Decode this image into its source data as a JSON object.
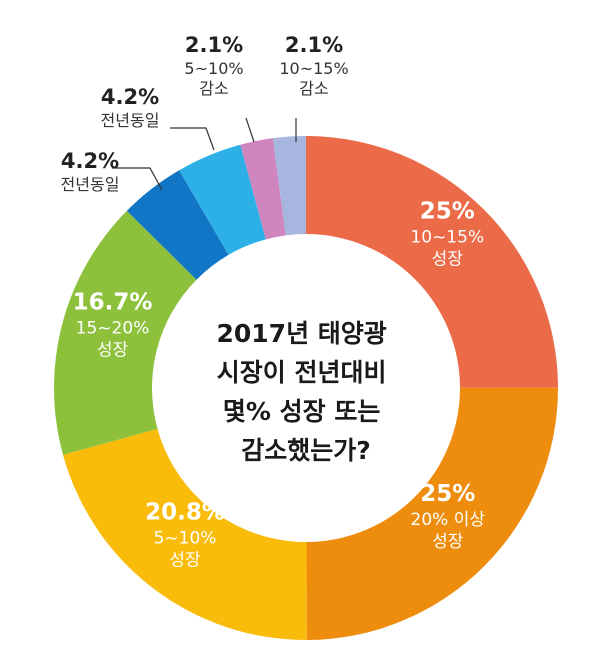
{
  "chart_data": {
    "type": "pie",
    "donut": true,
    "center_text": [
      "2017년 태양광",
      "시장이 전년대비",
      "몇% 성장 또는",
      "감소했는가?"
    ],
    "slices": [
      {
        "value": 25,
        "percent_label": "25%",
        "label_lines": [
          "10~15%",
          "성장"
        ],
        "color": "#EB6B48"
      },
      {
        "value": 25,
        "percent_label": "25%",
        "label_lines": [
          "20% 이상",
          "성장"
        ],
        "color": "#EE8C0D"
      },
      {
        "value": 20.8,
        "percent_label": "20.8%",
        "label_lines": [
          "5~10%",
          "성장"
        ],
        "color": "#F9BC0A"
      },
      {
        "value": 16.7,
        "percent_label": "16.7%",
        "label_lines": [
          "15~20%",
          "성장"
        ],
        "color": "#8DC13C"
      },
      {
        "value": 4.2,
        "percent_label": "4.2%",
        "label_lines": [
          "전년동일"
        ],
        "color": "#1276C6"
      },
      {
        "value": 4.2,
        "percent_label": "4.2%",
        "label_lines": [
          "전년동일"
        ],
        "color": "#2CB0E6"
      },
      {
        "value": 2.1,
        "percent_label": "2.1%",
        "label_lines": [
          "5~10%",
          "감소"
        ],
        "color": "#CF85BD"
      },
      {
        "value": 2.1,
        "percent_label": "2.1%",
        "label_lines": [
          "10~15%",
          "감소"
        ],
        "color": "#A6B6DF"
      }
    ]
  }
}
